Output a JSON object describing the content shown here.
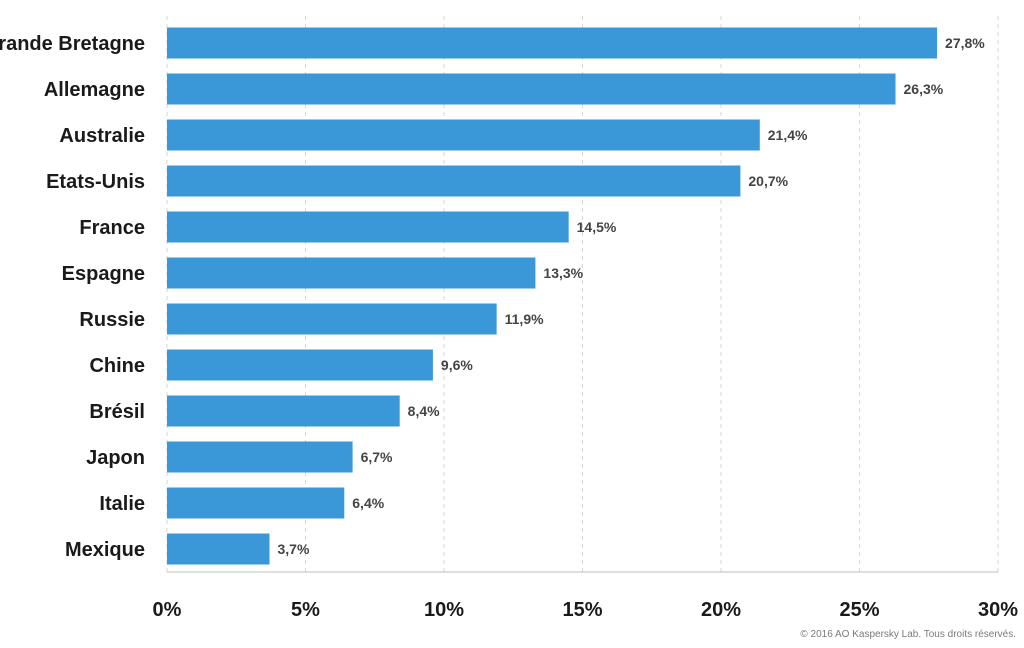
{
  "chart_data": {
    "type": "bar",
    "orientation": "horizontal",
    "categories": [
      "Grande Bretagne",
      "Allemagne",
      "Australie",
      "Etats-Unis",
      "France",
      "Espagne",
      "Russie",
      "Chine",
      "Brésil",
      "Japon",
      "Italie",
      "Mexique"
    ],
    "values": [
      27.8,
      26.3,
      21.4,
      20.7,
      14.5,
      13.3,
      11.9,
      9.6,
      8.4,
      6.7,
      6.4,
      3.7
    ],
    "value_labels": [
      "27,8%",
      "26,3%",
      "21,4%",
      "20,7%",
      "14,5%",
      "13,3%",
      "11,9%",
      "9,6%",
      "8,4%",
      "6,7%",
      "6,4%",
      "3,7%"
    ],
    "xlim": [
      0,
      30
    ],
    "xticks": [
      0,
      5,
      10,
      15,
      20,
      25,
      30
    ],
    "xtick_labels": [
      "0%",
      "5%",
      "10%",
      "15%",
      "20%",
      "25%",
      "30%"
    ],
    "grid": "vertical dashed",
    "bar_color": "#3a98d8"
  },
  "footer": {
    "credit": "© 2016 AO Kaspersky Lab. Tous droits réservés."
  }
}
